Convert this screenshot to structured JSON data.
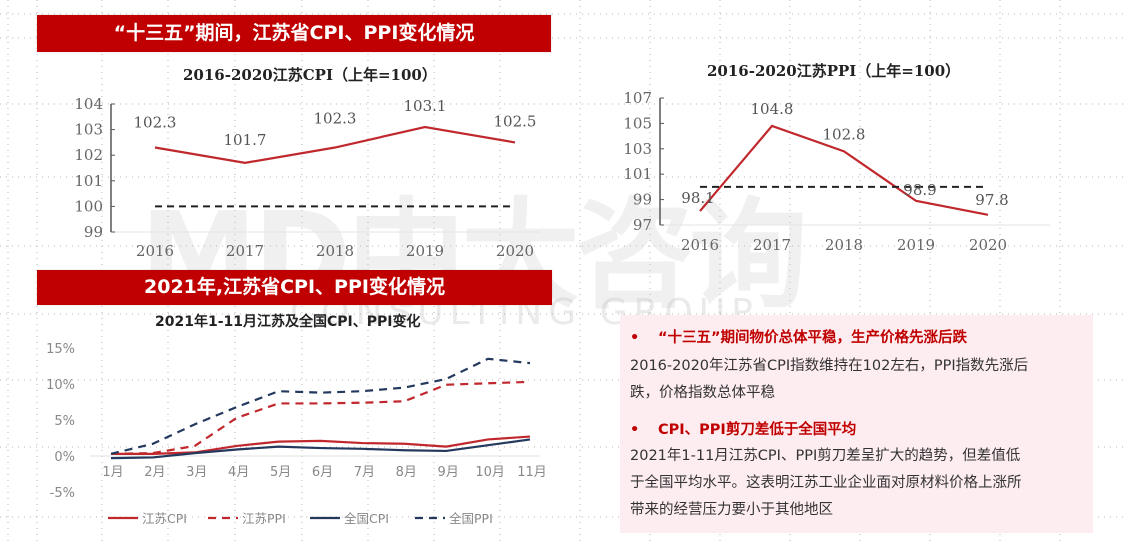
{
  "banners": {
    "top": "“十三五”期间，江苏省CPI、PPI变化情况",
    "bottom": "2021年,江苏省CPI、PPI变化情况"
  },
  "watermark": {
    "main": "MD中大咨询",
    "sub": "CONSULTING GROUP"
  },
  "chart_data": [
    {
      "type": "line",
      "title": "2016-2020江苏CPI（上年=100）",
      "categories": [
        "2016",
        "2017",
        "2018",
        "2019",
        "2020"
      ],
      "series": [
        {
          "name": "江苏CPI",
          "values": [
            102.3,
            101.7,
            102.3,
            103.1,
            102.5
          ],
          "color": "#c0282d",
          "style": "solid"
        },
        {
          "name": "基准线",
          "values": [
            100,
            100,
            100,
            100,
            100
          ],
          "color": "#222222",
          "style": "dashed"
        }
      ],
      "data_labels": [
        "102.3",
        "101.7",
        "102.3",
        "103.1",
        "102.5"
      ],
      "xlabel": "",
      "ylabel": "",
      "ylim": [
        99,
        104
      ],
      "yticks": [
        "104",
        "103",
        "102",
        "101",
        "100",
        "99"
      ],
      "grid": false
    },
    {
      "type": "line",
      "title": "2016-2020江苏PPI（上年=100）",
      "categories": [
        "2016",
        "2017",
        "2018",
        "2019",
        "2020"
      ],
      "series": [
        {
          "name": "江苏PPI",
          "values": [
            98.1,
            104.8,
            102.8,
            98.9,
            97.8
          ],
          "color": "#c0282d",
          "style": "solid"
        },
        {
          "name": "基准线",
          "values": [
            100,
            100,
            100,
            100,
            100
          ],
          "color": "#222222",
          "style": "dashed"
        }
      ],
      "data_labels": [
        "98.1",
        "104.8",
        "102.8",
        "98.9",
        "97.8"
      ],
      "xlabel": "",
      "ylabel": "",
      "ylim": [
        97,
        107
      ],
      "yticks": [
        "107",
        "105",
        "103",
        "101",
        "99",
        "97"
      ],
      "grid": false
    },
    {
      "type": "line",
      "title": "2021年1-11月江苏及全国CPI、PPI变化",
      "categories": [
        "1月",
        "2月",
        "3月",
        "4月",
        "5月",
        "6月",
        "7月",
        "8月",
        "9月",
        "10月",
        "11月"
      ],
      "series": [
        {
          "name": "江苏CPI",
          "values": [
            0.3,
            0.3,
            0.5,
            1.4,
            2.0,
            2.1,
            1.8,
            1.7,
            1.3,
            2.3,
            2.7
          ],
          "color": "#c0282d",
          "style": "solid"
        },
        {
          "name": "江苏PPI",
          "values": [
            0.3,
            0.4,
            1.4,
            5.3,
            7.3,
            7.3,
            7.4,
            7.6,
            9.9,
            10.1,
            10.3
          ],
          "color": "#c0282d",
          "style": "dashed"
        },
        {
          "name": "全国CPI",
          "values": [
            -0.3,
            -0.2,
            0.4,
            0.9,
            1.3,
            1.1,
            1.0,
            0.8,
            0.7,
            1.5,
            2.3
          ],
          "color": "#24395e",
          "style": "solid"
        },
        {
          "name": "全国PPI",
          "values": [
            0.3,
            1.7,
            4.4,
            6.8,
            9.0,
            8.8,
            9.0,
            9.5,
            10.7,
            13.5,
            12.9
          ],
          "color": "#24395e",
          "style": "dashed"
        }
      ],
      "xlabel": "",
      "ylabel": "",
      "ylim": [
        -5,
        15
      ],
      "yticks": [
        "15%",
        "10%",
        "5%",
        "0%",
        "-5%"
      ],
      "legend": [
        "江苏CPI",
        "江苏PPI",
        "全国CPI",
        "全国PPI"
      ],
      "legend_position": "bottom",
      "grid": false
    }
  ],
  "panel": {
    "points": [
      {
        "bullet": "•",
        "heading": "“十三五”期间物价总体平稳，生产价格先涨后跌",
        "lines": [
          "2016-2020年江苏省CPI指数维持在102左右，PPI指数先涨后",
          "跌，价格指数总体平稳"
        ]
      },
      {
        "bullet": "•",
        "heading": "CPI、PPI剪刀差低于全国平均",
        "lines": [
          "2021年1-11月江苏CPI、PPI剪刀差呈扩大的趋势，但差值低",
          "于全国平均水平。这表明江苏工业企业面对原材料价格上涨所",
          "带来的经营压力要小于其他地区"
        ]
      }
    ]
  }
}
